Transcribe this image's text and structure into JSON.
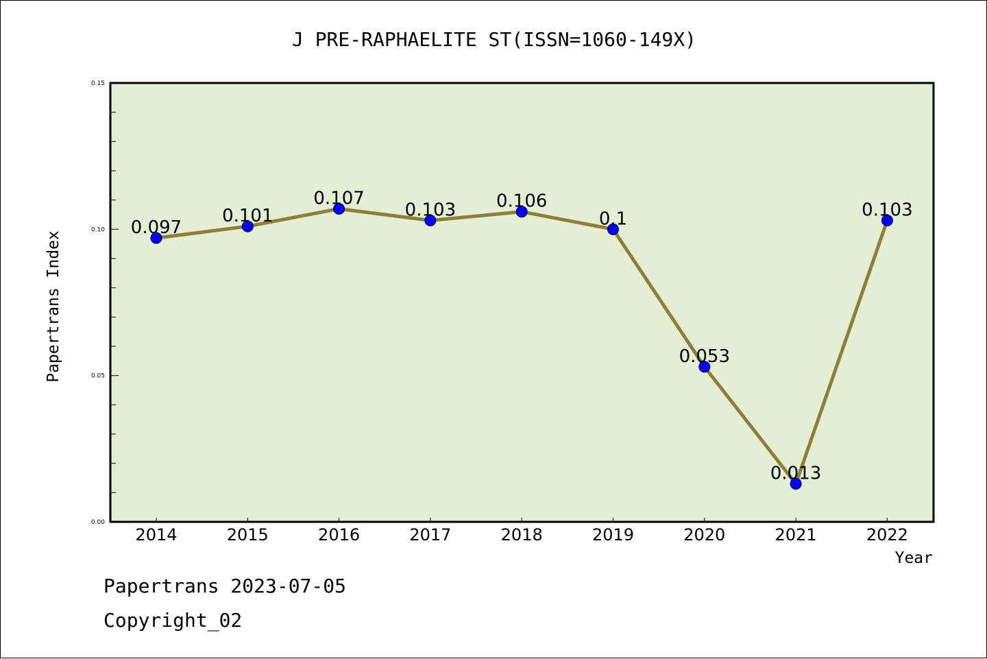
{
  "colors": {
    "plot_background": "#e2efd5",
    "line": "#8f7e35",
    "marker_fill": "#0000ff",
    "marker_edge": "#000033",
    "axes": "#000000"
  },
  "footer": {
    "source_line": "Papertrans 2023-07-05",
    "copyright_line": "Copyright_02"
  },
  "chart_data": {
    "type": "line",
    "title": "J PRE-RAPHAELITE ST(ISSN=1060-149X)",
    "xlabel": "Year",
    "ylabel": "Papertrans Index",
    "categories": [
      "2014",
      "2015",
      "2016",
      "2017",
      "2018",
      "2019",
      "2020",
      "2021",
      "2022"
    ],
    "series": [
      {
        "name": "Papertrans Index",
        "values": [
          0.097,
          0.101,
          0.107,
          0.103,
          0.106,
          0.1,
          0.053,
          0.013,
          0.103
        ],
        "labels": [
          "0.097",
          "0.101",
          "0.107",
          "0.103",
          "0.106",
          "0.1",
          "0.053",
          "0.013",
          "0.103"
        ]
      }
    ],
    "ylim": [
      0,
      0.15
    ],
    "yticks": [
      0.0,
      0.05,
      0.1,
      0.15
    ],
    "ytick_labels": [
      "0.00",
      "0.05",
      "0.10",
      "0.15"
    ],
    "y_minor_step": 0.01,
    "grid": false,
    "legend": "none"
  }
}
